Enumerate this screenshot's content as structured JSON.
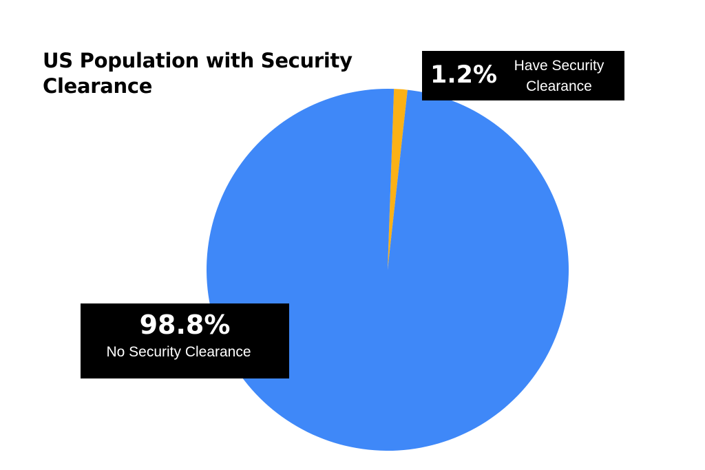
{
  "chart_data": {
    "type": "pie",
    "title": "US Population with Security Clearance",
    "slices": [
      {
        "label": "Have Security Clearance",
        "value": 1.2,
        "display": "1.2%",
        "color": "#fbb116"
      },
      {
        "label": "No Security Clearance",
        "value": 98.8,
        "display": "98.8%",
        "color": "#3f88f8"
      }
    ],
    "start": "top, clockwise",
    "legend": "none"
  }
}
